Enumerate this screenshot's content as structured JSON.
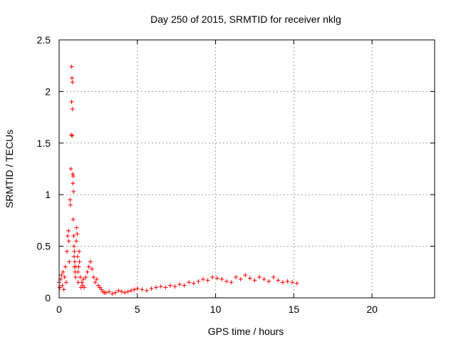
{
  "chart_data": {
    "type": "scatter",
    "title": "Day 250 of 2015, SRMTID for receiver nklg",
    "xlabel": "GPS time / hours",
    "ylabel": "SRMTID / TECUs",
    "xlim": [
      0,
      24
    ],
    "ylim": [
      0,
      2.5
    ],
    "xticks": [
      0,
      5,
      10,
      15,
      20
    ],
    "xtick_labels": [
      "0",
      "5",
      "10",
      "15",
      "20"
    ],
    "yticks": [
      0,
      0.5,
      1,
      1.5,
      2,
      2.5
    ],
    "ytick_labels": [
      "0",
      "0.5",
      "1",
      "1.5",
      "2",
      "2.5"
    ],
    "grid": true,
    "marker": "+",
    "color": "#ff0000",
    "series": [
      {
        "name": "SRMTID",
        "x": [
          0.0,
          0.05,
          0.1,
          0.15,
          0.2,
          0.25,
          0.3,
          0.35,
          0.4,
          0.45,
          0.5,
          0.55,
          0.6,
          0.62,
          0.65,
          0.7,
          0.72,
          0.75,
          0.78,
          0.8,
          0.8,
          0.82,
          0.83,
          0.85,
          0.85,
          0.87,
          0.88,
          0.9,
          0.9,
          0.92,
          0.93,
          0.95,
          0.95,
          0.97,
          0.98,
          1.0,
          1.02,
          1.05,
          1.08,
          1.1,
          1.12,
          1.15,
          1.18,
          1.2,
          1.22,
          1.25,
          1.28,
          1.3,
          1.35,
          1.4,
          1.45,
          1.5,
          1.55,
          1.6,
          1.7,
          1.8,
          1.9,
          2.0,
          2.1,
          2.2,
          2.3,
          2.4,
          2.5,
          2.6,
          2.7,
          2.8,
          2.9,
          3.0,
          3.2,
          3.4,
          3.6,
          3.8,
          4.0,
          4.2,
          4.4,
          4.6,
          4.8,
          5.0,
          5.3,
          5.6,
          5.9,
          6.2,
          6.5,
          6.8,
          7.1,
          7.4,
          7.7,
          8.0,
          8.3,
          8.6,
          8.9,
          9.2,
          9.5,
          9.8,
          10.1,
          10.4,
          10.7,
          11.0,
          11.3,
          11.6,
          11.9,
          12.2,
          12.5,
          12.8,
          13.1,
          13.4,
          13.7,
          14.0,
          14.3,
          14.6,
          14.9,
          15.2
        ],
        "y": [
          0.15,
          0.1,
          0.18,
          0.22,
          0.12,
          0.25,
          0.08,
          0.2,
          0.3,
          0.15,
          0.45,
          0.6,
          0.65,
          0.55,
          0.35,
          0.95,
          0.9,
          1.25,
          1.58,
          1.9,
          2.24,
          2.13,
          1.57,
          2.09,
          1.83,
          1.2,
          1.11,
          1.18,
          0.76,
          1.03,
          0.6,
          0.5,
          0.4,
          0.3,
          0.45,
          0.35,
          0.25,
          0.2,
          0.3,
          0.55,
          0.68,
          0.62,
          0.4,
          0.25,
          0.15,
          0.3,
          0.45,
          0.35,
          0.2,
          0.1,
          0.15,
          0.12,
          0.18,
          0.1,
          0.2,
          0.25,
          0.3,
          0.35,
          0.28,
          0.2,
          0.15,
          0.18,
          0.12,
          0.1,
          0.08,
          0.06,
          0.05,
          0.05,
          0.06,
          0.04,
          0.05,
          0.07,
          0.06,
          0.05,
          0.06,
          0.07,
          0.08,
          0.09,
          0.08,
          0.07,
          0.09,
          0.1,
          0.11,
          0.1,
          0.12,
          0.11,
          0.13,
          0.12,
          0.15,
          0.14,
          0.16,
          0.18,
          0.17,
          0.2,
          0.19,
          0.18,
          0.16,
          0.15,
          0.2,
          0.18,
          0.22,
          0.19,
          0.17,
          0.2,
          0.18,
          0.16,
          0.2,
          0.17,
          0.15,
          0.16,
          0.15,
          0.14
        ]
      }
    ]
  }
}
